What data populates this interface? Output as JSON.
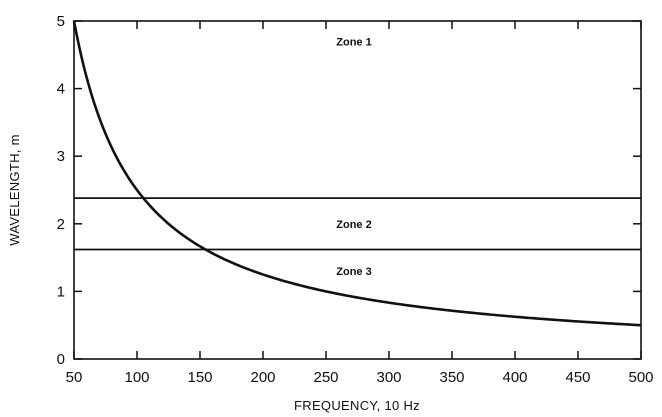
{
  "chart_data": {
    "type": "line",
    "xlabel": "FREQUENCY, 10 Hz",
    "ylabel": "WAVELENGTH, m",
    "xlim": [
      50,
      500
    ],
    "ylim": [
      0,
      5
    ],
    "x_ticks": [
      "50",
      "100",
      "150",
      "200",
      "250",
      "300",
      "350",
      "400",
      "450",
      "500"
    ],
    "y_ticks": [
      "0",
      "1",
      "2",
      "3",
      "4",
      "5"
    ],
    "series": [
      {
        "x": [
          50,
          60,
          70,
          80,
          90,
          100,
          110,
          120,
          130,
          140,
          150,
          175,
          200,
          250,
          300,
          350,
          400,
          450,
          500
        ],
        "y": [
          5.0,
          4.17,
          3.57,
          3.13,
          2.78,
          2.5,
          2.27,
          2.08,
          1.92,
          1.79,
          1.67,
          1.43,
          1.25,
          1.0,
          0.83,
          0.71,
          0.63,
          0.56,
          0.5
        ]
      }
    ],
    "hlines": [
      2.38,
      1.62
    ],
    "zones": [
      {
        "label": "Zone 1",
        "y": 4.7
      },
      {
        "label": "Zone 2",
        "y": 2.0
      },
      {
        "label": "Zone 3",
        "y": 1.3
      }
    ],
    "grid": false,
    "legend": false
  }
}
